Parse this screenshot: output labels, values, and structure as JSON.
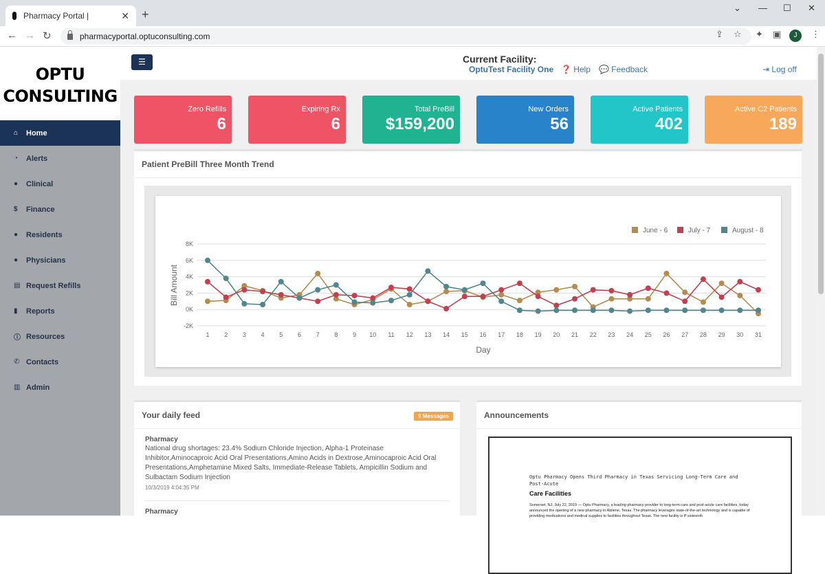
{
  "browser": {
    "tab_title": "Pharmacy Portal |",
    "url": "pharmacyportal.optuconsulting.com",
    "profile_initial": "J"
  },
  "sidebar": {
    "logo_line1": "OPTU",
    "logo_line2": "CONSULTING",
    "items": [
      {
        "label": "Home",
        "icon": "home-icon"
      },
      {
        "label": "Alerts",
        "icon": "dashboard-icon"
      },
      {
        "label": "Clinical",
        "icon": "user-md-icon"
      },
      {
        "label": "Finance",
        "icon": "dollar-icon"
      },
      {
        "label": "Residents",
        "icon": "user-icon"
      },
      {
        "label": "Physicians",
        "icon": "user-icon"
      },
      {
        "label": "Request Refills",
        "icon": "refill-icon"
      },
      {
        "label": "Reports",
        "icon": "file-icon"
      },
      {
        "label": "Resources",
        "icon": "info-icon"
      },
      {
        "label": "Contacts",
        "icon": "phone-icon"
      },
      {
        "label": "Admin",
        "icon": "book-icon"
      }
    ]
  },
  "header": {
    "facility_label": "Current Facility:",
    "facility_name": "OptuTest Facility One",
    "help": "Help",
    "feedback": "Feedback",
    "logoff": "Log off"
  },
  "cards": [
    {
      "label": "Zero Refills",
      "value": "6",
      "color": "#ef5466"
    },
    {
      "label": "Expiring Rx",
      "value": "6",
      "color": "#ef5466"
    },
    {
      "label": "Total PreBill",
      "value": "$159,200",
      "color": "#1fb392"
    },
    {
      "label": "New Orders",
      "value": "56",
      "color": "#2883cb"
    },
    {
      "label": "Active Patients",
      "value": "402",
      "color": "#23c6c8"
    },
    {
      "label": "Active C2 Patients",
      "value": "189",
      "color": "#f7a85a"
    }
  ],
  "trend_panel": {
    "title": "Patient PreBill Three Month Trend"
  },
  "chart_data": {
    "type": "line",
    "title": "",
    "xlabel": "Day",
    "ylabel": "Bill Amount",
    "ylim": [
      -2000,
      8000
    ],
    "yticks": [
      "-2K",
      "0K",
      "2K",
      "4K",
      "6K",
      "8K"
    ],
    "x": [
      1,
      2,
      3,
      4,
      5,
      6,
      7,
      8,
      9,
      10,
      11,
      12,
      13,
      14,
      15,
      16,
      17,
      18,
      19,
      20,
      21,
      22,
      23,
      24,
      25,
      26,
      27,
      28,
      29,
      30,
      31
    ],
    "legend_position": "top-right",
    "grid": true,
    "series": [
      {
        "name": "June - 6",
        "color": "#b48c4f",
        "values": [
          1000,
          1100,
          2900,
          2300,
          1400,
          1800,
          4400,
          1300,
          600,
          1200,
          2500,
          600,
          1000,
          2200,
          2300,
          1500,
          1800,
          1100,
          2100,
          2400,
          2800,
          300,
          1300,
          1300,
          1300,
          4400,
          2100,
          900,
          3200,
          1700,
          -500
        ]
      },
      {
        "name": "July - 7",
        "color": "#c0414f",
        "values": [
          3400,
          1500,
          2400,
          2200,
          1800,
          1400,
          1000,
          1800,
          1700,
          1400,
          2700,
          2500,
          1000,
          100,
          1600,
          1600,
          2400,
          3200,
          1600,
          500,
          1300,
          2400,
          2300,
          1800,
          2600,
          2000,
          1000,
          3700,
          1500,
          3400,
          2400
        ]
      },
      {
        "name": "August - 8",
        "color": "#4f878c",
        "values": [
          6000,
          3800,
          700,
          600,
          3400,
          1400,
          2400,
          3000,
          900,
          800,
          1100,
          1800,
          4700,
          2800,
          2400,
          3200,
          1000,
          -100,
          -200,
          -100,
          -100,
          -100,
          -100,
          -200,
          -100,
          -100,
          -100,
          -100,
          -100,
          -100,
          -100
        ]
      }
    ]
  },
  "feed": {
    "title": "Your daily feed",
    "badge": "9 Messages",
    "items": [
      {
        "category": "Pharmacy",
        "text": "National drug shortages: 23.4% Sodium Chloride Injection, Alpha-1 Proteinase Inhibitor,Aminocaproic Acid Oral Presentations,Amino Acids in Dextrose,Aminocaproic Acid Oral Presentations,Amphetamine Mixed Salts, Immediate-Release Tablets, Ampicillin Sodium and Sulbactam Sodium Injection",
        "date": "10/3/2019 4:04:35 PM"
      },
      {
        "category": "Pharmacy"
      }
    ]
  },
  "announcements": {
    "title": "Announcements",
    "doc_heading": "Optu Pharmacy Opens Third Pharmacy in Texas Servicing Long-Term Care and Post-Acute",
    "doc_title": "Care Facilities",
    "doc_body": "Somerset, NJ, July 22, 2019 — Optu Pharmacy, a leading pharmacy provider to long-term care and post-acute care facilities, today announced the opening of a new pharmacy in Abilene, Texas. The pharmacy leverages state-of-the-art technology and is capable of providing medications and medical supplies to facilities throughout Texas. The new facility is P sixteenth"
  }
}
